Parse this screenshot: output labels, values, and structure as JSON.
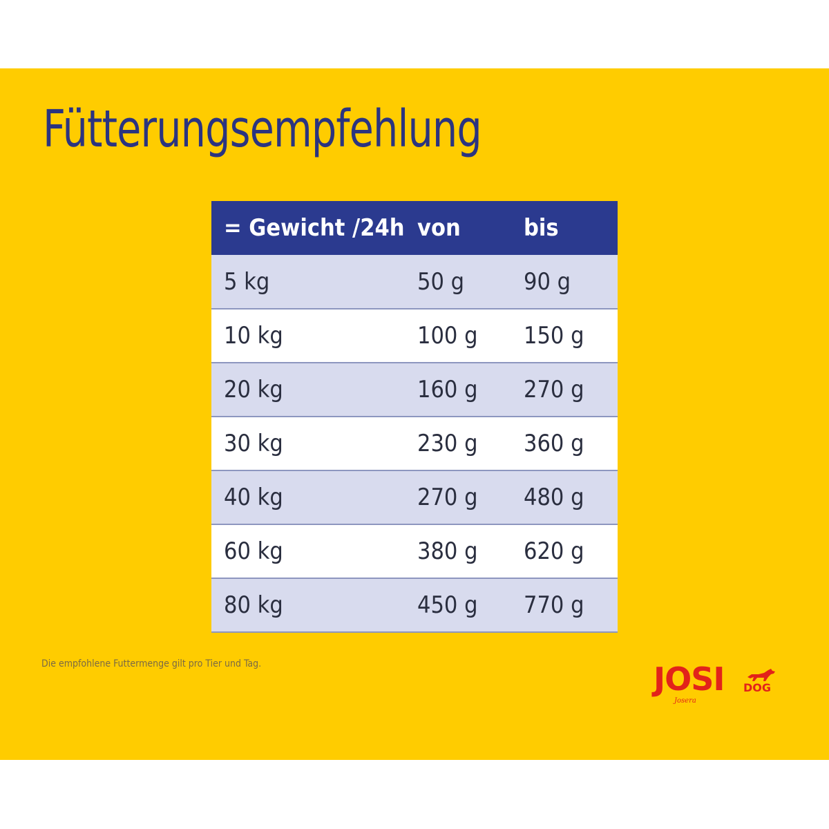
{
  "title": "Fütterungsempfehlung",
  "table": {
    "headers": [
      "= Gewicht /24h",
      "von",
      "bis"
    ],
    "rows": [
      [
        "5 kg",
        "50 g",
        "90 g"
      ],
      [
        "10 kg",
        "100 g",
        "150 g"
      ],
      [
        "20 kg",
        "160 g",
        "270 g"
      ],
      [
        "30 kg",
        "230 g",
        "360 g"
      ],
      [
        "40 kg",
        "270 g",
        "480 g"
      ],
      [
        "60 kg",
        "380 g",
        "620 g"
      ],
      [
        "80 kg",
        "450 g",
        "770 g"
      ]
    ]
  },
  "note": "Die empfohlene Futtermenge gilt pro Tier und Tag.",
  "logo": {
    "main": "JOSI",
    "sub": "DOG",
    "brand": "Josera",
    "icon": "dog-icon"
  },
  "colors": {
    "background": "#ffcc00",
    "header": "#2b3a8f",
    "title": "#2b3480",
    "row_shaded": "#d8dbee",
    "logo": "#e2231a"
  }
}
